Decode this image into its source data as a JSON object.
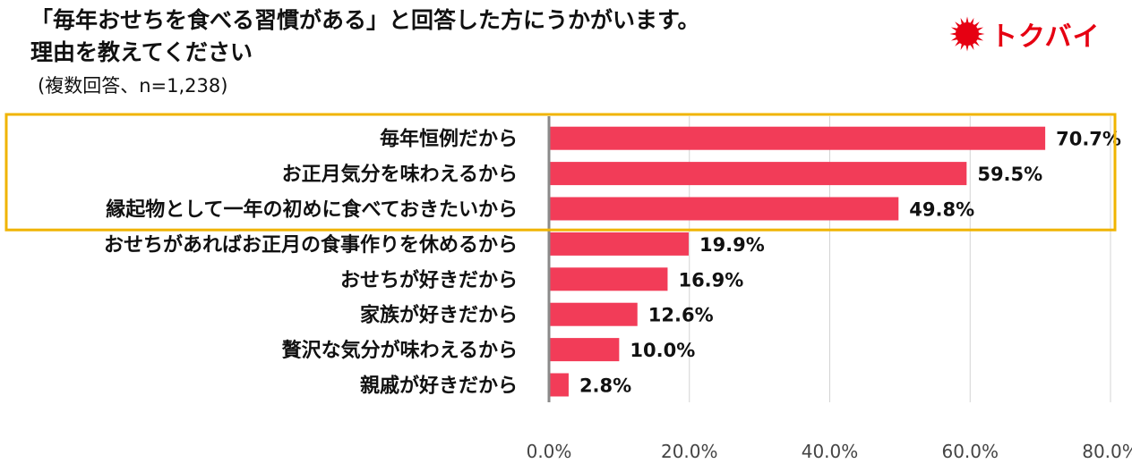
{
  "header": {
    "title_line1": "「毎年おせちを食べる習慣がある」と回答した方にうかがいます。",
    "title_line2": "理由を教えてください",
    "subtitle": "(複数回答、n=1,238)"
  },
  "logo": {
    "text": "トクバイ",
    "icon": "sunburst-icon",
    "color": "#e60012"
  },
  "chart_data": {
    "type": "bar",
    "orientation": "horizontal",
    "title": "「毎年おせちを食べる習慣がある」と回答した方にうかがいます。理由を教えてください",
    "subtitle": "(複数回答、n=1,238)",
    "categories": [
      "毎年恒例だから",
      "お正月気分を味わえるから",
      "縁起物として一年の初めに食べておきたいから",
      "おせちがあればお正月の食事作りを休めるから",
      "おせちが好きだから",
      "家族が好きだから",
      "贅沢な気分が味わえるから",
      "親戚が好きだから"
    ],
    "values": [
      70.7,
      59.5,
      49.8,
      19.9,
      16.9,
      12.6,
      10.0,
      2.8
    ],
    "value_labels": [
      "70.7%",
      "59.5%",
      "49.8%",
      "19.9%",
      "16.9%",
      "12.6%",
      "10.0%",
      "2.8%"
    ],
    "xlim": [
      0,
      80
    ],
    "xticks": [
      "0.0%",
      "20.0%",
      "40.0%",
      "60.0%",
      "80.0%"
    ],
    "grid": true,
    "bar_color": "#f23c58",
    "highlight_color": "#f0b400",
    "highlight_top_n": 3
  }
}
